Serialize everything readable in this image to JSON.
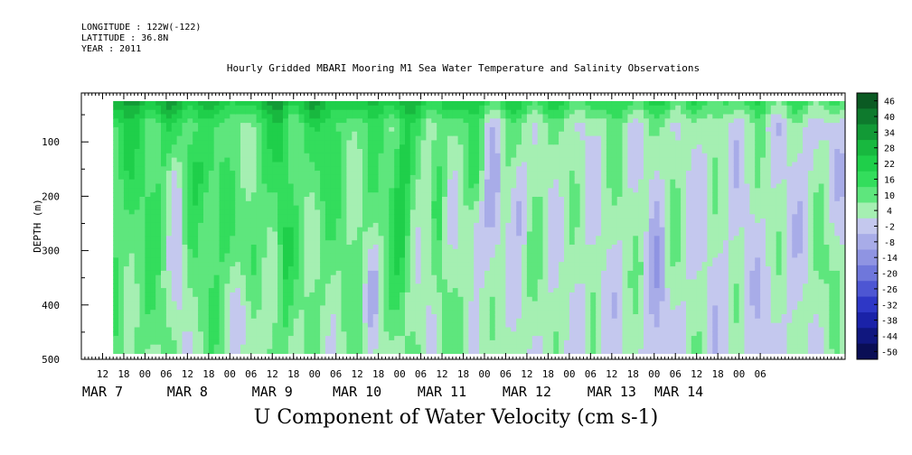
{
  "header": {
    "longitude": "LONGITUDE : 122W(-122)",
    "latitude": "LATITUDE : 36.8N",
    "year": "YEAR : 2011"
  },
  "chart_data": {
    "type": "heatmap",
    "title": "Hourly Gridded MBARI Mooring M1 Sea Water Temperature and Salinity Observations",
    "xlabel": "U Component of Water Velocity (cm s-1)",
    "ylabel": "DEPTH (m)",
    "x_hours_since_mar7_00": [
      6,
      222
    ],
    "data_hours_since_mar7_00": [
      15,
      222
    ],
    "ylim": [
      500,
      10
    ],
    "data_depth_range": [
      25,
      485
    ],
    "y_ticks": [
      100,
      200,
      300,
      400,
      500
    ],
    "x_hour_ticks": [
      "12",
      "18",
      "00",
      "06",
      "12",
      "18",
      "00",
      "06",
      "12",
      "18",
      "00",
      "06",
      "12",
      "18",
      "00",
      "06",
      "12",
      "18",
      "00",
      "06",
      "12",
      "18",
      "00",
      "06",
      "12",
      "18",
      "00",
      "06",
      "12",
      "18",
      "00",
      "06"
    ],
    "x_date_labels": [
      {
        "label": "MAR  7",
        "hour": 12
      },
      {
        "label": "MAR  8",
        "hour": 36
      },
      {
        "label": "MAR  9",
        "hour": 60
      },
      {
        "label": "MAR 10",
        "hour": 84
      },
      {
        "label": "MAR 11",
        "hour": 108
      },
      {
        "label": "MAR 12",
        "hour": 132
      },
      {
        "label": "MAR 13",
        "hour": 156
      },
      {
        "label": "MAR 14",
        "hour": 175
      }
    ],
    "colorbar_labels": [
      46,
      40,
      34,
      28,
      22,
      16,
      10,
      4,
      -2,
      -8,
      -14,
      -20,
      -26,
      -32,
      -38,
      -44,
      -50
    ],
    "color_levels": [
      {
        "v": 46,
        "c": "#0b5a23"
      },
      {
        "v": 40,
        "c": "#0e7a2d"
      },
      {
        "v": 34,
        "c": "#129a36"
      },
      {
        "v": 28,
        "c": "#18b83f"
      },
      {
        "v": 22,
        "c": "#1fcf4a"
      },
      {
        "v": 16,
        "c": "#33dd5c"
      },
      {
        "v": 10,
        "c": "#5ee67d"
      },
      {
        "v": 4,
        "c": "#a5efb2"
      },
      {
        "v": -2,
        "c": "#c4c8ee"
      },
      {
        "v": -8,
        "c": "#a8ace8"
      },
      {
        "v": -14,
        "c": "#8f94e2"
      },
      {
        "v": -20,
        "c": "#6f77db"
      },
      {
        "v": -26,
        "c": "#4d56d3"
      },
      {
        "v": -32,
        "c": "#2e37c6"
      },
      {
        "v": -38,
        "c": "#1a22a8"
      },
      {
        "v": -44,
        "c": "#10177f"
      },
      {
        "v": -50,
        "c": "#0a0e55"
      }
    ],
    "grid": false
  }
}
